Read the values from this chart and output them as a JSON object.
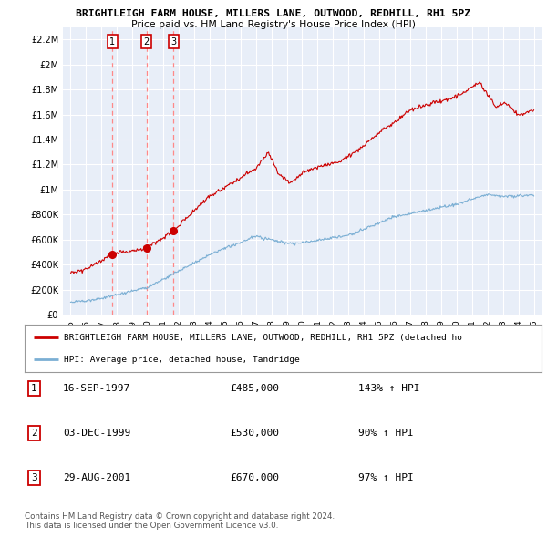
{
  "title": "BRIGHTLEIGH FARM HOUSE, MILLERS LANE, OUTWOOD, REDHILL, RH1 5PZ",
  "subtitle": "Price paid vs. HM Land Registry's House Price Index (HPI)",
  "ylim": [
    0,
    2300000
  ],
  "yticks": [
    0,
    200000,
    400000,
    600000,
    800000,
    1000000,
    1200000,
    1400000,
    1600000,
    1800000,
    2000000,
    2200000
  ],
  "ytick_labels": [
    "£0",
    "£200K",
    "£400K",
    "£600K",
    "£800K",
    "£1M",
    "£1.2M",
    "£1.4M",
    "£1.6M",
    "£1.8M",
    "£2M",
    "£2.2M"
  ],
  "background_color": "#ffffff",
  "plot_bg_color": "#e8eef8",
  "grid_color": "#ffffff",
  "sale_color": "#cc0000",
  "hpi_color": "#7bafd4",
  "vline_color": "#ff8888",
  "sales": [
    {
      "date_num": 1997.71,
      "price": 485000,
      "label": "1"
    },
    {
      "date_num": 1999.92,
      "price": 530000,
      "label": "2"
    },
    {
      "date_num": 2001.66,
      "price": 670000,
      "label": "3"
    }
  ],
  "legend_sale_label": "BRIGHTLEIGH FARM HOUSE, MILLERS LANE, OUTWOOD, REDHILL, RH1 5PZ (detached ho",
  "legend_hpi_label": "HPI: Average price, detached house, Tandridge",
  "table_rows": [
    {
      "num": "1",
      "date": "16-SEP-1997",
      "price": "£485,000",
      "hpi": "143% ↑ HPI"
    },
    {
      "num": "2",
      "date": "03-DEC-1999",
      "price": "£530,000",
      "hpi": "90% ↑ HPI"
    },
    {
      "num": "3",
      "date": "29-AUG-2001",
      "price": "£670,000",
      "hpi": "97% ↑ HPI"
    }
  ],
  "footer1": "Contains HM Land Registry data © Crown copyright and database right 2024.",
  "footer2": "This data is licensed under the Open Government Licence v3.0."
}
